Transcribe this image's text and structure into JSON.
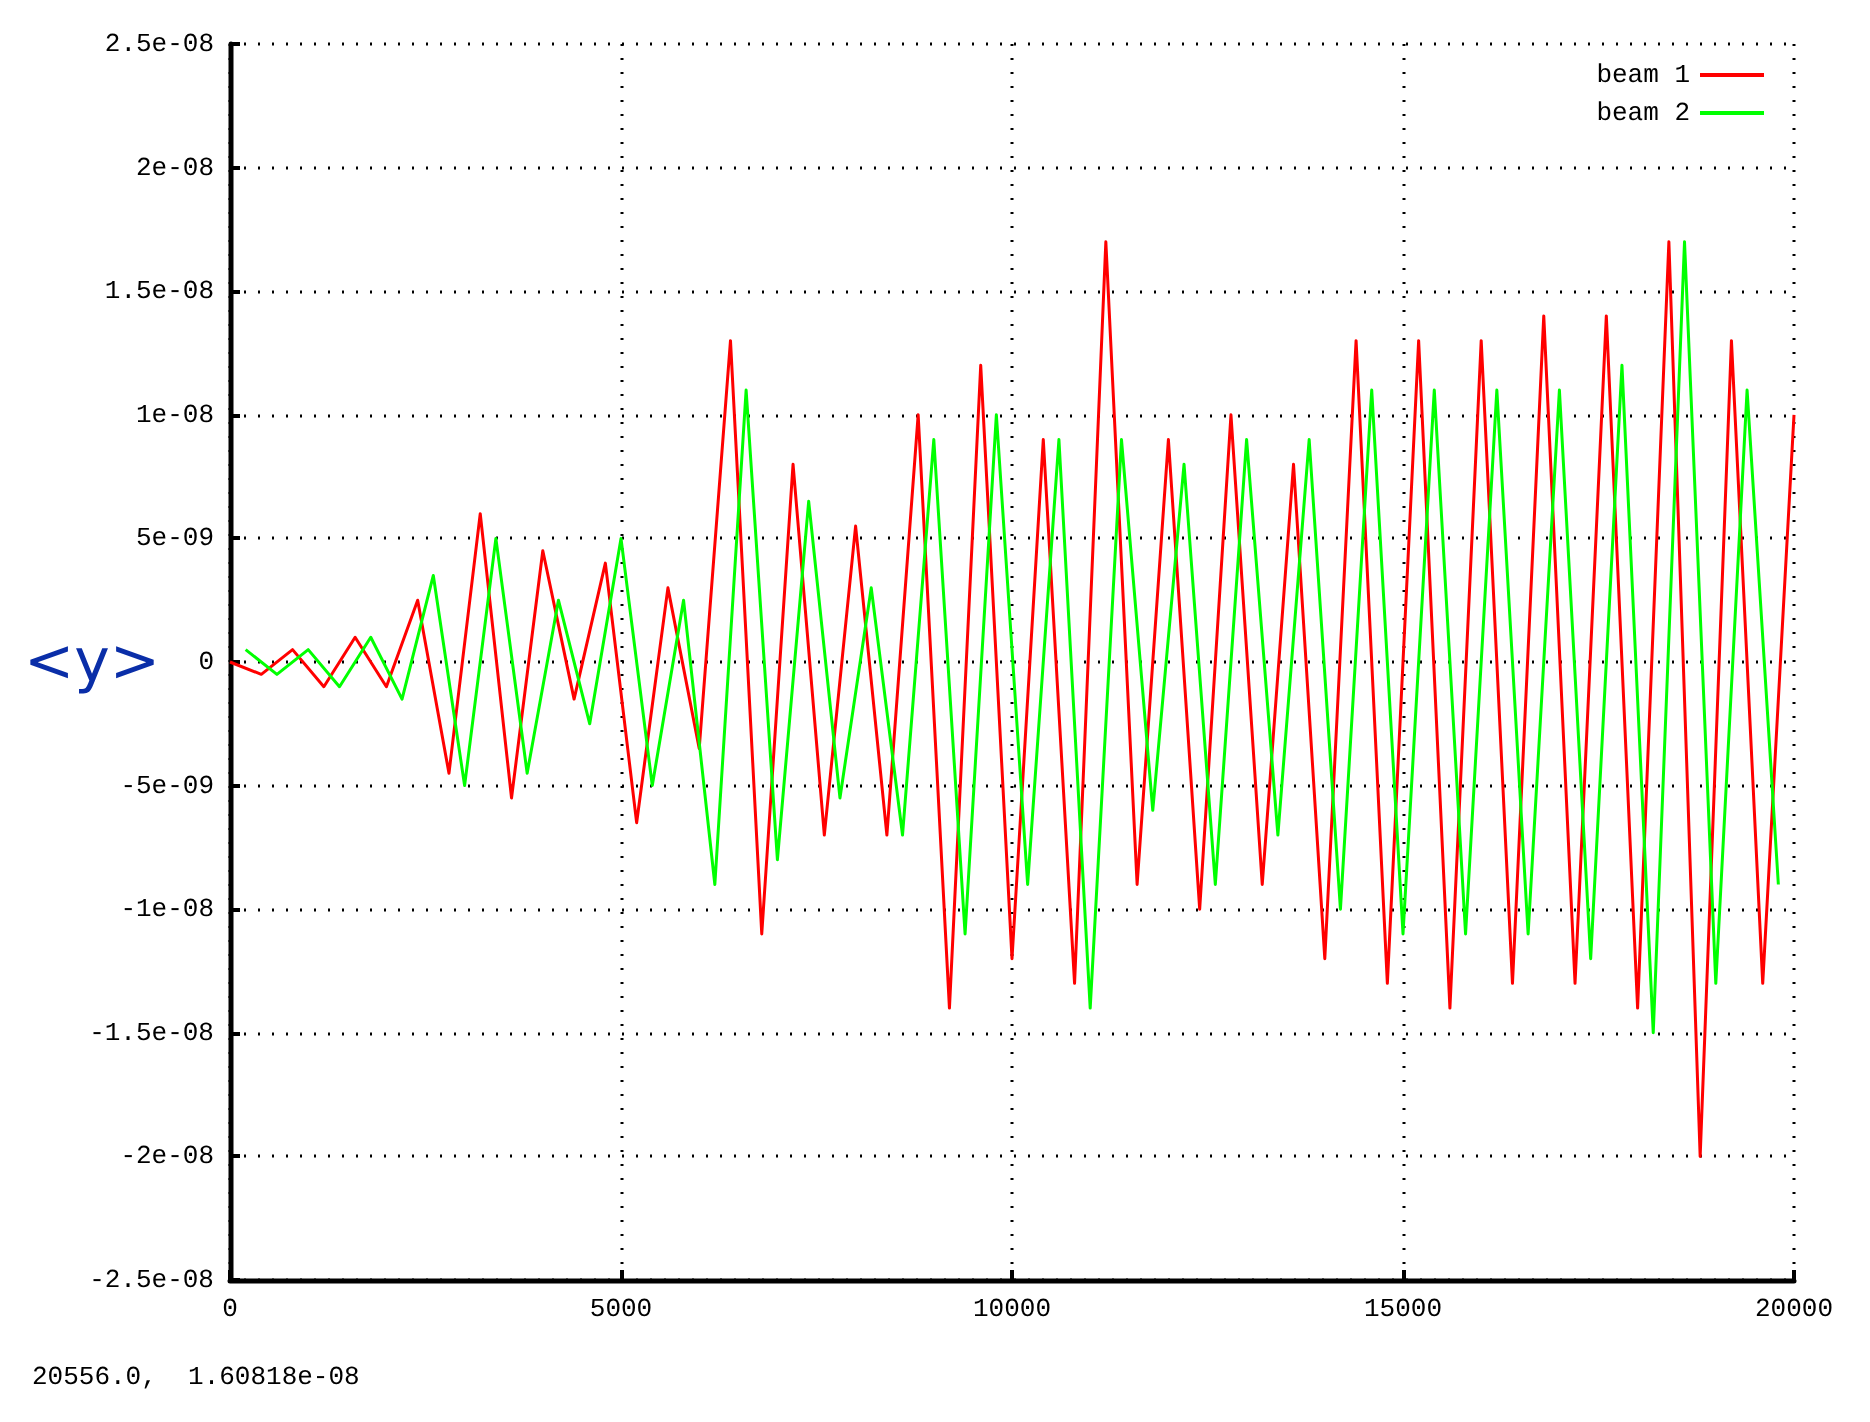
{
  "chart_data": {
    "type": "line",
    "ylabel": "<y>",
    "annotations": [
      "20556.0,  1.60818e-08"
    ],
    "legend": "top right",
    "grid": true,
    "marker": "none",
    "line_style": "solid",
    "xlim": [
      0,
      20000
    ],
    "xticks": [
      0,
      5000,
      10000,
      15000,
      20000
    ],
    "ylim": [
      -2.5e-08,
      2.5e-08
    ],
    "yticks": [
      {
        "value": -2.5e-08,
        "label": "-2.5e-08"
      },
      {
        "value": -2e-08,
        "label": "-2e-08"
      },
      {
        "value": -1.5e-08,
        "label": "-1.5e-08"
      },
      {
        "value": -1e-08,
        "label": "-1e-08"
      },
      {
        "value": -5e-09,
        "label": "-5e-09"
      },
      0,
      {
        "value": 5e-09,
        "label": "5e-09"
      },
      {
        "value": 1e-08,
        "label": "1e-08"
      },
      {
        "value": 1.5e-08,
        "label": "1.5e-08"
      },
      {
        "value": 2e-08,
        "label": "2e-08"
      },
      {
        "value": 2.5e-08,
        "label": "2.5e-08"
      }
    ],
    "series": [
      {
        "name": "beam 1",
        "color": "#ff0000",
        "x": [
          0,
          400,
          800,
          1200,
          1600,
          2000,
          2400,
          2800,
          3200,
          3600,
          4000,
          4400,
          4800,
          5200,
          5600,
          6000,
          6400,
          6800,
          7200,
          7600,
          8000,
          8400,
          8800,
          9200,
          9600,
          10000,
          10400,
          10800,
          11200,
          11600,
          12000,
          12400,
          12800,
          13200,
          13600,
          14000,
          14400,
          14800,
          15200,
          15600,
          16000,
          16400,
          16800,
          17200,
          17600,
          18000,
          18400,
          18800,
          19200,
          19600,
          20000
        ],
        "values": [
          0,
          -5e-10,
          5e-10,
          -1e-09,
          1e-09,
          -1e-09,
          2.5e-09,
          -4.5e-09,
          6e-09,
          -5.5e-09,
          4.5e-09,
          -1.5e-09,
          4e-09,
          -6.5e-09,
          3e-09,
          -3.5e-09,
          1.3e-08,
          -1.1e-08,
          8e-09,
          -7e-09,
          5.5e-09,
          -7e-09,
          1e-08,
          -1.4e-08,
          1.2e-08,
          -1.2e-08,
          9e-09,
          -1.3e-08,
          1.7e-08,
          -9e-09,
          9e-09,
          -1e-08,
          1e-08,
          -9e-09,
          8e-09,
          -1.2e-08,
          1.3e-08,
          -1.3e-08,
          1.3e-08,
          -1.4e-08,
          1.3e-08,
          -1.3e-08,
          1.4e-08,
          -1.3e-08,
          1.4e-08,
          -1.4e-08,
          1.7e-08,
          -2e-08,
          1.3e-08,
          -1.3e-08,
          1e-08
        ]
      },
      {
        "name": "beam 2",
        "color": "#00ff00",
        "x": [
          200,
          600,
          1000,
          1400,
          1800,
          2200,
          2600,
          3000,
          3400,
          3800,
          4200,
          4600,
          5000,
          5400,
          5800,
          6200,
          6600,
          7000,
          7400,
          7800,
          8200,
          8600,
          9000,
          9400,
          9800,
          10200,
          10600,
          11000,
          11400,
          11800,
          12200,
          12600,
          13000,
          13400,
          13800,
          14200,
          14600,
          15000,
          15400,
          15800,
          16200,
          16600,
          17000,
          17400,
          17800,
          18200,
          18600,
          19000,
          19400,
          19800
        ],
        "values": [
          5e-10,
          -5e-10,
          5e-10,
          -1e-09,
          1e-09,
          -1.5e-09,
          3.5e-09,
          -5e-09,
          5e-09,
          -4.5e-09,
          2.5e-09,
          -2.5e-09,
          5e-09,
          -5e-09,
          2.5e-09,
          -9e-09,
          1.1e-08,
          -8e-09,
          6.5e-09,
          -5.5e-09,
          3e-09,
          -7e-09,
          9e-09,
          -1.1e-08,
          1e-08,
          -9e-09,
          9e-09,
          -1.4e-08,
          9e-09,
          -6e-09,
          8e-09,
          -9e-09,
          9e-09,
          -7e-09,
          9e-09,
          -1e-08,
          1.1e-08,
          -1.1e-08,
          1.1e-08,
          -1.1e-08,
          1.1e-08,
          -1.1e-08,
          1.1e-08,
          -1.2e-08,
          1.2e-08,
          -1.5e-08,
          1.7e-08,
          -1.3e-08,
          1.1e-08,
          -9e-09
        ]
      }
    ]
  }
}
